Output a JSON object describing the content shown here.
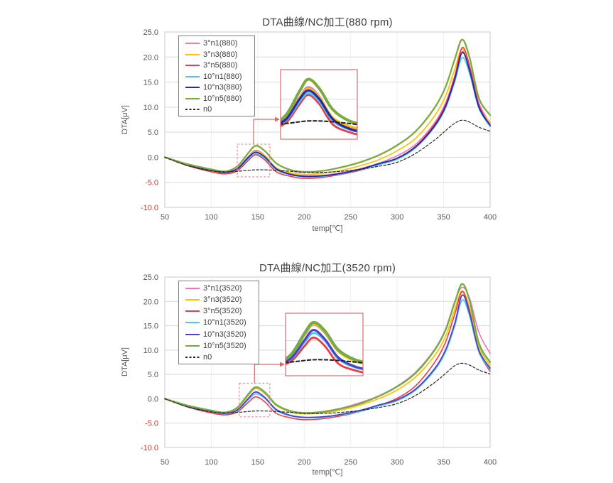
{
  "page": {
    "background_color": "#ffffff"
  },
  "accent": {
    "zoom_callout_color": "#d96a6a",
    "zoom_box_dash_color": "#ed8c8c",
    "grid_color": "#d9d9d9",
    "minor_vgrid_color": "#efefef",
    "plot_border_color": "#c9c9c9",
    "axis_text_color": "#595959",
    "negative_tick_color": "#e03030",
    "title_color": "#3f3f3f",
    "legend_border_color": "#7f7f7f"
  },
  "chart_data": [
    {
      "type": "line",
      "title": "DTA曲線/NC加工(880 rpm)",
      "xlabel": "temp[℃]",
      "ylabel": "DTA[μV]",
      "xlim": [
        50,
        400
      ],
      "ylim": [
        -10,
        25
      ],
      "x_ticks": [
        50,
        100,
        150,
        200,
        250,
        300,
        350,
        400
      ],
      "x_tick_labels": [
        "50",
        "100",
        "150",
        "200",
        "250",
        "300",
        "350",
        "400"
      ],
      "y_ticks": [
        25,
        20,
        15,
        10,
        5,
        0,
        -5,
        -10
      ],
      "y_tick_labels": [
        "25.0",
        "20.0",
        "15.0",
        "10.0",
        "5.0",
        "0.0",
        "-5.0",
        "-10.0"
      ],
      "grid": true,
      "legend_position": "top-left-inside",
      "x": [
        50,
        75,
        100,
        115,
        128,
        140,
        148,
        158,
        170,
        185,
        200,
        220,
        240,
        260,
        280,
        300,
        320,
        340,
        352,
        362,
        370,
        378,
        388,
        400
      ],
      "series": [
        {
          "name": "3°n1(880)",
          "color": "#f172c1",
          "width": 1.6,
          "dash": null,
          "values": [
            0,
            -1.6,
            -2.6,
            -3.0,
            -2.2,
            0.2,
            1.4,
            0.3,
            -2.2,
            -3.3,
            -3.7,
            -3.6,
            -3.1,
            -2.3,
            -1.2,
            0.3,
            2.6,
            6.8,
            10.8,
            16.2,
            21.1,
            18.0,
            10.8,
            6.7
          ]
        },
        {
          "name": "3°n3(880)",
          "color": "#ffc000",
          "width": 1.7,
          "dash": null,
          "values": [
            0,
            -1.6,
            -2.7,
            -3.1,
            -2.3,
            0.1,
            1.2,
            0.2,
            -2.1,
            -3.1,
            -3.4,
            -3.2,
            -2.6,
            -1.7,
            -0.5,
            1.3,
            3.8,
            8.2,
            12.2,
            17.6,
            21.6,
            17.6,
            10.2,
            6.9
          ]
        },
        {
          "name": "3°n5(880)",
          "color": "#ed3b45",
          "width": 1.6,
          "dash": null,
          "values": [
            0,
            -1.7,
            -2.9,
            -3.3,
            -2.7,
            -0.6,
            0.5,
            -0.6,
            -2.9,
            -3.8,
            -4.2,
            -4.0,
            -3.4,
            -2.6,
            -1.5,
            -0.2,
            2.2,
            6.5,
            10.5,
            16.2,
            21.9,
            18.2,
            10.4,
            6.3
          ]
        },
        {
          "name": "10°n1(880)",
          "color": "#4fc7ed",
          "width": 1.6,
          "dash": null,
          "values": [
            0,
            -1.5,
            -2.6,
            -3.0,
            -2.4,
            -0.3,
            0.7,
            -0.3,
            -2.5,
            -3.5,
            -3.9,
            -3.8,
            -3.3,
            -2.5,
            -1.5,
            -0.4,
            1.9,
            6.0,
            9.8,
            15.1,
            19.9,
            16.6,
            9.7,
            6.1
          ]
        },
        {
          "name": "10°n3(880)",
          "color": "#2428ac",
          "width": 1.8,
          "dash": null,
          "values": [
            0,
            -1.5,
            -2.6,
            -3.0,
            -2.3,
            0.0,
            1.0,
            0.0,
            -2.3,
            -3.4,
            -3.8,
            -3.7,
            -3.2,
            -2.4,
            -1.3,
            -0.2,
            2.1,
            6.2,
            10.1,
            15.6,
            20.9,
            17.3,
            10.0,
            6.4
          ]
        },
        {
          "name": "10°n5(880)",
          "color": "#7bab3f",
          "width": 2.3,
          "dash": null,
          "values": [
            0,
            -1.4,
            -2.4,
            -2.8,
            -1.8,
            0.9,
            2.3,
            1.2,
            -1.2,
            -2.5,
            -2.9,
            -2.7,
            -2.0,
            -1.0,
            0.4,
            2.4,
            5.2,
            9.8,
            14.0,
            19.6,
            23.5,
            19.8,
            11.8,
            8.4
          ]
        },
        {
          "name": "n0",
          "color": "#262626",
          "width": 1.2,
          "dash": "3.5,2.5",
          "values": [
            0,
            -1.7,
            -2.7,
            -2.9,
            -2.8,
            -2.6,
            -2.5,
            -2.5,
            -2.6,
            -2.8,
            -3.0,
            -3.0,
            -2.8,
            -2.4,
            -1.8,
            -1.0,
            0.8,
            3.4,
            5.3,
            6.8,
            7.4,
            7.0,
            6.0,
            5.2
          ]
        }
      ],
      "annotations": {
        "zoom_source_box": {
          "x_range": [
            128,
            163
          ],
          "y_range": [
            -3.9,
            2.6
          ]
        },
        "zoom_inset": {
          "x_range": [
            123,
            192
          ],
          "y_range": [
            -4.6,
            3.4
          ]
        }
      }
    },
    {
      "type": "line",
      "title": "DTA曲線/NC加工(3520 rpm)",
      "xlabel": "temp[℃]",
      "ylabel": "DTA[μV]",
      "xlim": [
        50,
        400
      ],
      "ylim": [
        -10,
        25
      ],
      "x_ticks": [
        50,
        100,
        150,
        200,
        250,
        300,
        350,
        400
      ],
      "x_tick_labels": [
        "50",
        "100",
        "150",
        "200",
        "250",
        "300",
        "350",
        "400"
      ],
      "y_ticks": [
        25,
        20,
        15,
        10,
        5,
        0,
        -5,
        -10
      ],
      "y_tick_labels": [
        "25.0",
        "20.0",
        "15.0",
        "10.0",
        "5.0",
        "0.0",
        "-5.0",
        "-10.0"
      ],
      "grid": true,
      "legend_position": "top-left-inside",
      "x": [
        50,
        75,
        100,
        115,
        128,
        140,
        148,
        158,
        170,
        185,
        200,
        220,
        240,
        260,
        280,
        300,
        320,
        340,
        352,
        362,
        370,
        378,
        388,
        400
      ],
      "series": [
        {
          "name": "3°n1(3520)",
          "color": "#f172c1",
          "width": 1.6,
          "dash": null,
          "values": [
            0,
            -1.5,
            -2.5,
            -2.8,
            -1.9,
            0.7,
            2.1,
            1.0,
            -1.4,
            -2.6,
            -2.9,
            -2.6,
            -1.9,
            -0.8,
            0.6,
            2.6,
            5.5,
            10.1,
            14.3,
            20.0,
            22.9,
            20.6,
            13.6,
            9.3
          ]
        },
        {
          "name": "3°n3(3520)",
          "color": "#ffc000",
          "width": 1.7,
          "dash": null,
          "values": [
            0,
            -1.6,
            -2.6,
            -3.0,
            -2.0,
            0.8,
            2.2,
            1.1,
            -1.4,
            -2.7,
            -3.1,
            -2.9,
            -2.3,
            -1.3,
            0.0,
            1.8,
            4.5,
            8.8,
            12.8,
            18.4,
            22.2,
            18.6,
            10.6,
            6.9
          ]
        },
        {
          "name": "3°n5(3520)",
          "color": "#ed3b45",
          "width": 1.6,
          "dash": null,
          "values": [
            0,
            -1.7,
            -2.9,
            -3.3,
            -2.7,
            -0.7,
            0.4,
            -0.7,
            -3.0,
            -3.9,
            -4.3,
            -4.1,
            -3.5,
            -2.6,
            -1.4,
            0.1,
            2.7,
            7.4,
            11.6,
            17.4,
            22.0,
            17.9,
            9.7,
            5.6
          ]
        },
        {
          "name": "10°n1(3520)",
          "color": "#4fc7ed",
          "width": 1.6,
          "dash": null,
          "values": [
            0,
            -1.5,
            -2.6,
            -3.0,
            -2.4,
            -0.2,
            1.0,
            0.0,
            -2.4,
            -3.5,
            -3.9,
            -3.8,
            -3.3,
            -2.6,
            -1.5,
            -0.4,
            1.8,
            5.8,
            9.6,
            15.0,
            20.3,
            16.9,
            9.5,
            6.0
          ]
        },
        {
          "name": "10°n3(3520)",
          "color": "#4b42c8",
          "width": 1.8,
          "dash": null,
          "values": [
            0,
            -1.5,
            -2.6,
            -3.0,
            -2.3,
            0.1,
            1.4,
            0.2,
            -2.2,
            -3.4,
            -3.8,
            -3.7,
            -3.2,
            -2.4,
            -1.3,
            -0.2,
            2.0,
            6.1,
            10.0,
            15.5,
            21.3,
            17.5,
            9.9,
            6.3
          ]
        },
        {
          "name": "10°n5(3520)",
          "color": "#70ad47",
          "width": 2.3,
          "dash": null,
          "values": [
            0,
            -1.4,
            -2.4,
            -2.8,
            -1.8,
            1.0,
            2.4,
            1.3,
            -1.2,
            -2.5,
            -2.9,
            -2.7,
            -2.0,
            -1.0,
            0.5,
            2.5,
            5.3,
            9.9,
            14.1,
            19.8,
            23.6,
            20.1,
            11.4,
            7.5
          ]
        },
        {
          "name": "n0",
          "color": "#262626",
          "width": 1.2,
          "dash": "3.5,2.5",
          "values": [
            0,
            -1.7,
            -2.7,
            -2.9,
            -2.8,
            -2.6,
            -2.5,
            -2.5,
            -2.6,
            -2.8,
            -3.0,
            -3.0,
            -2.8,
            -2.4,
            -1.8,
            -1.0,
            0.7,
            3.3,
            5.2,
            6.8,
            7.3,
            6.9,
            5.9,
            5.1
          ]
        }
      ],
      "annotations": {
        "zoom_source_box": {
          "x_range": [
            130,
            163
          ],
          "y_range": [
            -3.7,
            3.2
          ]
        },
        "zoom_inset": {
          "x_range": [
            123,
            192
          ],
          "y_range": [
            -4.6,
            3.6
          ]
        }
      }
    }
  ]
}
